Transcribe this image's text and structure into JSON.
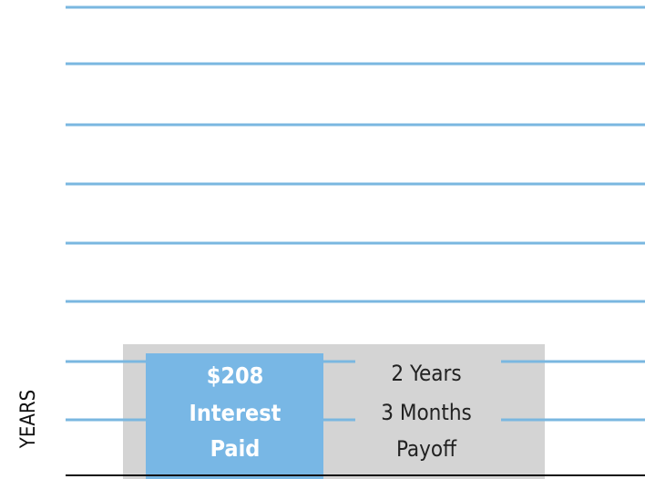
{
  "chart_data": {
    "type": "bar",
    "y_label": "YEARS",
    "bar_labels": [
      "$208",
      "Interest",
      "Paid"
    ],
    "payoff_labels": [
      "2 Years",
      "3 Months",
      "Payoff"
    ]
  }
}
